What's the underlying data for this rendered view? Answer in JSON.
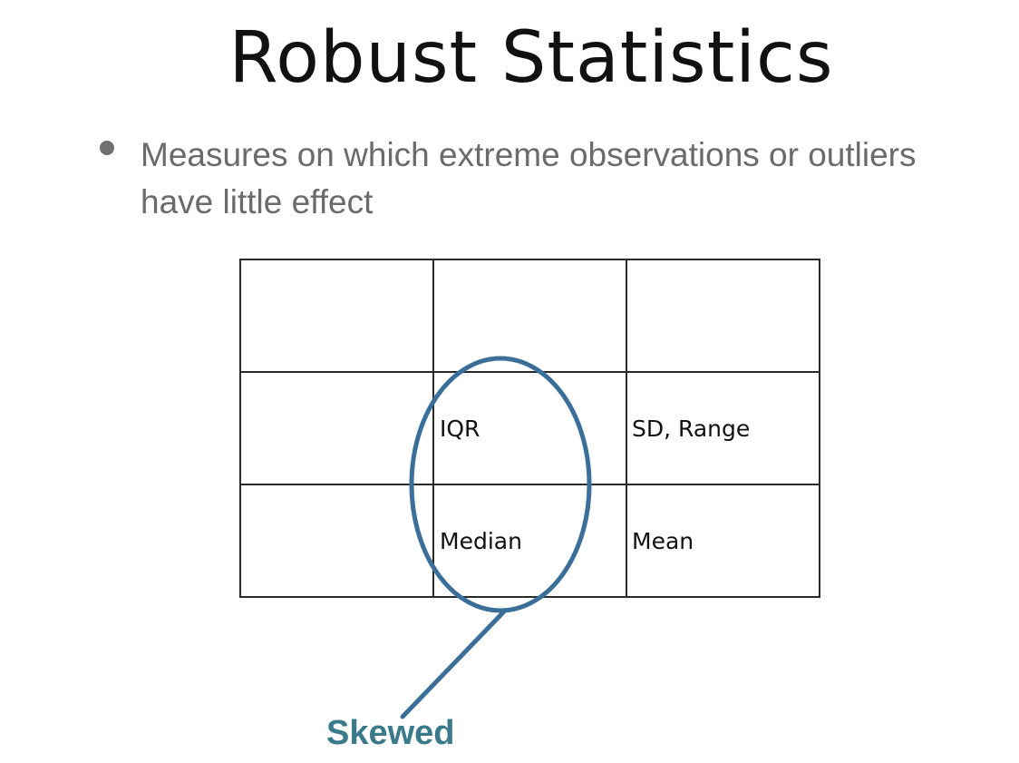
{
  "slide": {
    "title": "Robust Statistics",
    "bullet": "Measures on which extreme observations or outliers have little effect"
  },
  "table": {
    "rows": [
      [
        "",
        "",
        ""
      ],
      [
        "",
        "IQR",
        "SD, Range"
      ],
      [
        "",
        "Median",
        "Mean"
      ]
    ]
  },
  "callout": {
    "label": "Skewed",
    "color": "#3b6f9a",
    "label_color": "#3b7a8a"
  }
}
